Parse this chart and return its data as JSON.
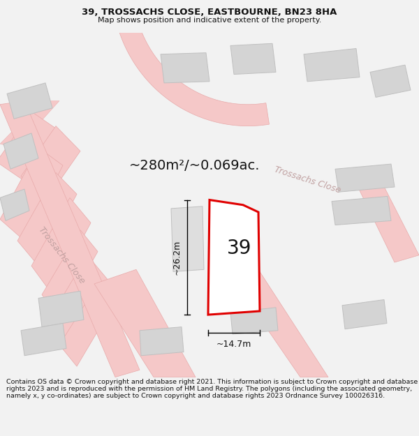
{
  "title_line1": "39, TROSSACHS CLOSE, EASTBOURNE, BN23 8HA",
  "title_line2": "Map shows position and indicative extent of the property.",
  "area_label": "~280m²/~0.069ac.",
  "number_label": "39",
  "dim_width": "~14.7m",
  "dim_height": "~26.2m",
  "road_label1": "Trossachs Close",
  "road_label2": "Trossachs Close",
  "footer_text": "Contains OS data © Crown copyright and database right 2021. This information is subject to Crown copyright and database rights 2023 and is reproduced with the permission of HM Land Registry. The polygons (including the associated geometry, namely x, y co-ordinates) are subject to Crown copyright and database rights 2023 Ordnance Survey 100026316.",
  "bg_color": "#f2f2f2",
  "map_bg": "#ebebeb",
  "plot_fill": "#ffffff",
  "plot_edge": "#e00000",
  "building_fill": "#d4d4d4",
  "road_fill": "#f5c8c8",
  "road_edge": "#e8aaaa",
  "title_fontsize": 9.5,
  "subtitle_fontsize": 8,
  "footer_fontsize": 6.8,
  "area_fontsize": 14,
  "number_fontsize": 20,
  "dim_fontsize": 9,
  "road_label_fontsize": 9
}
